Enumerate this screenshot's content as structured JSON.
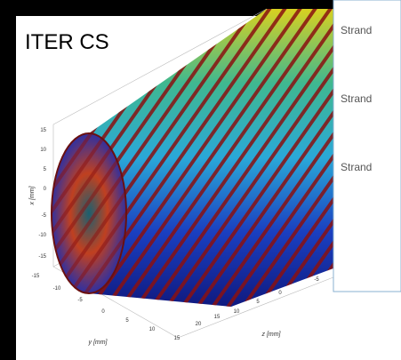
{
  "title": "ITER CS",
  "panel": {
    "labels": [
      "Strand",
      "Strand",
      "Strand"
    ]
  },
  "plot": {
    "x_axis": {
      "label": "x [mm]",
      "ticks": [
        15,
        10,
        5,
        0,
        -5,
        -10,
        -15
      ]
    },
    "y_axis": {
      "label": "y [mm]",
      "ticks": [
        -15,
        -10,
        -5,
        0,
        5,
        10,
        15
      ]
    },
    "z_axis": {
      "label": "z [mm]",
      "ticks": [
        20,
        15,
        10,
        5,
        0,
        -5
      ]
    }
  }
}
